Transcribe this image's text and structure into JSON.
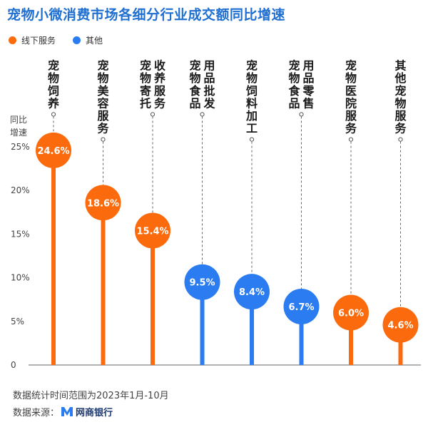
{
  "title": "宠物小微消费市场各细分行业成交额同比增速",
  "legend": [
    {
      "label": "线下服务",
      "color": "#fb6b0d"
    },
    {
      "label": "其他",
      "color": "#2a7cf0"
    }
  ],
  "footnote": "数据统计时间范围为2023年1月-10月",
  "source": {
    "label": "数据来源：",
    "brand": "网商银行",
    "logo_icon": "mybank-logo-icon"
  },
  "chart_data": {
    "type": "bar",
    "ylabel": "同比增速",
    "ylim": [
      0,
      25
    ],
    "yticks": [
      "0",
      "5%",
      "10%",
      "15%",
      "20%",
      "25%"
    ],
    "grid": false,
    "legend_position": "top-left",
    "categories": [
      "宠物饲养",
      "宠物美容服务",
      "宠物寄托收养服务",
      "宠物食品用品批发",
      "宠物饲料加工",
      "宠物食品用品零售",
      "宠物医院服务",
      "其他宠物服务"
    ],
    "values": [
      24.6,
      18.6,
      15.4,
      9.5,
      8.4,
      6.7,
      6.0,
      4.6
    ],
    "labels": [
      "24.6%",
      "18.6%",
      "15.4%",
      "9.5%",
      "8.4%",
      "6.7%",
      "6.0%",
      "4.6%"
    ],
    "groups": [
      "线下服务",
      "线下服务",
      "线下服务",
      "其他",
      "其他",
      "其他",
      "线下服务",
      "线下服务"
    ]
  }
}
